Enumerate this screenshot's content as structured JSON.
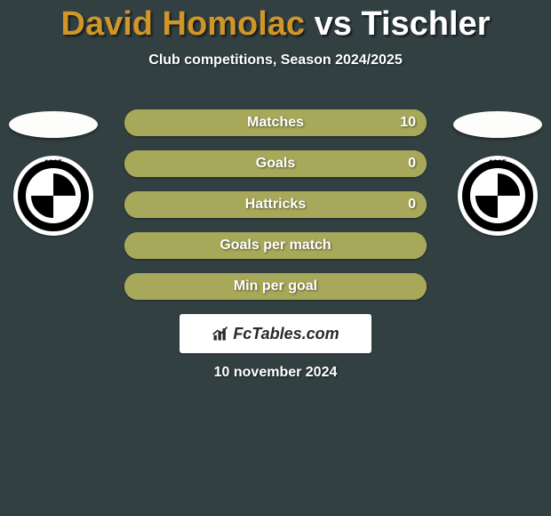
{
  "title": {
    "player1": "David Homolac",
    "vs": "vs",
    "player2": "Tischler",
    "player1_color": "#cf9628",
    "vs_color": "#ffffff",
    "player2_color": "#ffffff",
    "fontsize": 38
  },
  "subtitle": "Club competitions, Season 2024/2025",
  "background_color": "#324042",
  "badge": {
    "year": "1905"
  },
  "rows": [
    {
      "label": "Matches",
      "left": "",
      "right": "10",
      "left_color": "#a7a85a",
      "right_color": "#a7a85a",
      "left_width_pct": 50,
      "text_color": "#ffffff"
    },
    {
      "label": "Goals",
      "left": "",
      "right": "0",
      "left_color": "#a7a85a",
      "right_color": "#a7a85a",
      "left_width_pct": 50,
      "text_color": "#ffffff"
    },
    {
      "label": "Hattricks",
      "left": "",
      "right": "0",
      "left_color": "#a7a85a",
      "right_color": "#a7a85a",
      "left_width_pct": 50,
      "text_color": "#ffffff"
    },
    {
      "label": "Goals per match",
      "left": "",
      "right": "",
      "left_color": "#a7a85a",
      "right_color": "#a7a85a",
      "left_width_pct": 50,
      "text_color": "#ffffff"
    },
    {
      "label": "Min per goal",
      "left": "",
      "right": "",
      "left_color": "#a7a85a",
      "right_color": "#a7a85a",
      "left_width_pct": 50,
      "text_color": "#ffffff"
    }
  ],
  "row_style": {
    "height": 30,
    "gap": 16,
    "border_radius": 15,
    "label_fontsize": 16
  },
  "logo": {
    "text": "FcTables.com"
  },
  "date": "10 november 2024"
}
